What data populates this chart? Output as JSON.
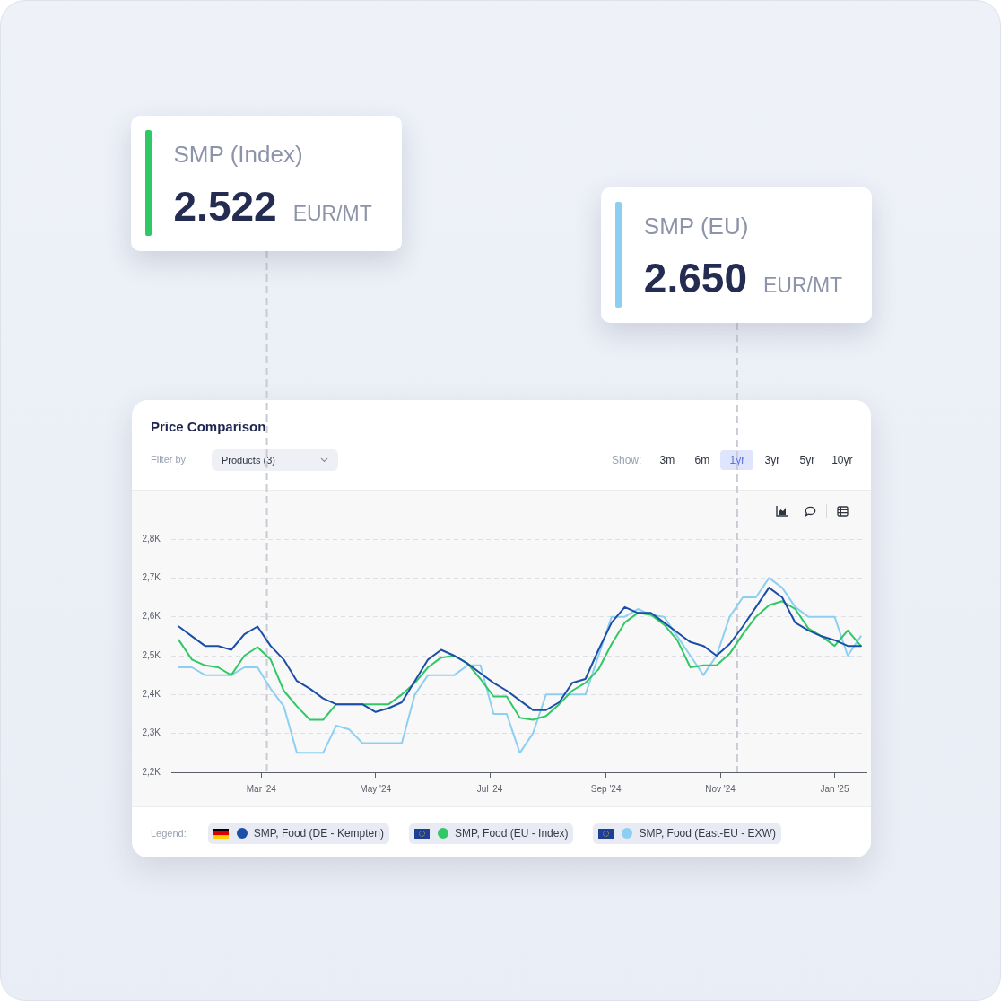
{
  "chart_data": {
    "type": "line",
    "title": "Price Comparison",
    "x": [
      "2024-01-17",
      "2024-01-24",
      "2024-01-31",
      "2024-02-07",
      "2024-02-14",
      "2024-02-21",
      "2024-02-28",
      "2024-03-06",
      "2024-03-13",
      "2024-03-20",
      "2024-03-27",
      "2024-04-03",
      "2024-04-10",
      "2024-04-17",
      "2024-04-24",
      "2024-05-01",
      "2024-05-08",
      "2024-05-15",
      "2024-05-22",
      "2024-05-29",
      "2024-06-05",
      "2024-06-12",
      "2024-06-19",
      "2024-06-26",
      "2024-07-03",
      "2024-07-10",
      "2024-07-17",
      "2024-07-24",
      "2024-07-31",
      "2024-08-07",
      "2024-08-14",
      "2024-08-21",
      "2024-08-28",
      "2024-09-04",
      "2024-09-11",
      "2024-09-18",
      "2024-09-25",
      "2024-10-02",
      "2024-10-09",
      "2024-10-16",
      "2024-10-23",
      "2024-10-30",
      "2024-11-06",
      "2024-11-13",
      "2024-11-20",
      "2024-11-27",
      "2024-12-04",
      "2024-12-11",
      "2024-12-18",
      "2024-12-25",
      "2025-01-01",
      "2025-01-08",
      "2025-01-15"
    ],
    "series": [
      {
        "name": "SMP, Food (DE - Kempten)",
        "color": "#1b4ea6",
        "values": [
          2575,
          2550,
          2525,
          2525,
          2515,
          2555,
          2575,
          2525,
          2490,
          2435,
          2415,
          2390,
          2375,
          2375,
          2375,
          2355,
          2365,
          2380,
          2435,
          2490,
          2515,
          2500,
          2480,
          2455,
          2430,
          2410,
          2385,
          2360,
          2360,
          2380,
          2430,
          2440,
          2515,
          2585,
          2625,
          2610,
          2610,
          2585,
          2560,
          2535,
          2525,
          2500,
          2530,
          2575,
          2625,
          2675,
          2650,
          2585,
          2565,
          2550,
          2540,
          2525,
          2525
        ]
      },
      {
        "name": "SMP, Food (EU - Index)",
        "color": "#2fc865",
        "values": [
          2540,
          2490,
          2475,
          2470,
          2450,
          2500,
          2522,
          2490,
          2410,
          2370,
          2335,
          2335,
          2375,
          2375,
          2375,
          2375,
          2375,
          2400,
          2430,
          2470,
          2495,
          2500,
          2480,
          2440,
          2395,
          2395,
          2340,
          2335,
          2345,
          2375,
          2410,
          2430,
          2465,
          2530,
          2585,
          2610,
          2605,
          2580,
          2540,
          2470,
          2475,
          2475,
          2505,
          2555,
          2600,
          2630,
          2640,
          2620,
          2570,
          2550,
          2525,
          2565,
          2525
        ]
      },
      {
        "name": "SMP, Food (East-EU - EXW)",
        "color": "#8dcff2",
        "values": [
          2470,
          2470,
          2450,
          2450,
          2450,
          2470,
          2470,
          2415,
          2370,
          2250,
          2250,
          2250,
          2320,
          2310,
          2275,
          2275,
          2275,
          2275,
          2400,
          2450,
          2450,
          2450,
          2475,
          2475,
          2350,
          2350,
          2250,
          2300,
          2400,
          2400,
          2400,
          2400,
          2500,
          2600,
          2600,
          2620,
          2605,
          2600,
          2550,
          2500,
          2450,
          2500,
          2600,
          2650,
          2650,
          2700,
          2675,
          2625,
          2600,
          2600,
          2600,
          2500,
          2550
        ]
      }
    ],
    "xlim": [
      "2024-01-13",
      "2025-01-18"
    ],
    "xticks": [
      {
        "value": "2024-03-01",
        "label": "Mar '24"
      },
      {
        "value": "2024-05-01",
        "label": "May '24"
      },
      {
        "value": "2024-07-01",
        "label": "Jul '24"
      },
      {
        "value": "2024-09-01",
        "label": "Sep '24"
      },
      {
        "value": "2024-11-01",
        "label": "Nov '24"
      },
      {
        "value": "2025-01-01",
        "label": "Jan '25"
      }
    ],
    "ylim": [
      2200,
      2800
    ],
    "yticks": [
      {
        "value": 2200,
        "label": "2,2K"
      },
      {
        "value": 2300,
        "label": "2,3K"
      },
      {
        "value": 2400,
        "label": "2,4K"
      },
      {
        "value": 2500,
        "label": "2,5K"
      },
      {
        "value": 2600,
        "label": "2,6K"
      },
      {
        "value": 2700,
        "label": "2,7K"
      },
      {
        "value": 2800,
        "label": "2,8K"
      }
    ],
    "grid": "y",
    "legend": "bottom",
    "legend_title": "Legend:",
    "ref_lines": [
      {
        "axis": "x",
        "value": "2024-03-04",
        "label": "SMP (Index)\n2.522 EUR/MT",
        "color": "#c8cbd3",
        "line_style": "dashed"
      },
      {
        "axis": "x",
        "value": "2024-11-10",
        "label": "SMP (EU)\n2.650 EUR/MT",
        "color": "#c8cbd3",
        "line_style": "dashed"
      }
    ],
    "annotations": [
      "Filter by:",
      "Products (3)",
      "Show:",
      "3m",
      "6m",
      "1yr",
      "3yr",
      "5yr",
      "10yr"
    ]
  }
}
